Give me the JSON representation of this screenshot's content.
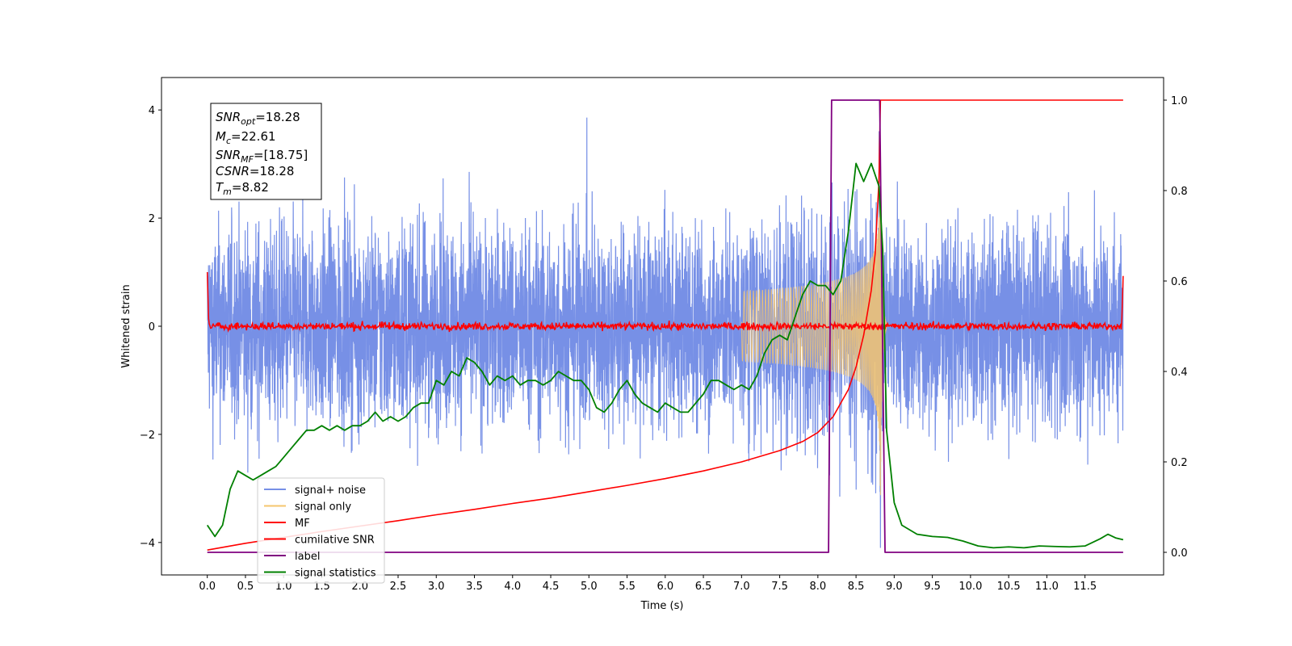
{
  "chart_data": {
    "type": "line",
    "xlabel": "Time (s)",
    "ylabel": "Whitened strain",
    "xlim": [
      -0.6,
      12.53
    ],
    "ylim_left": [
      -4.6,
      4.6
    ],
    "ylim_right": [
      -0.05,
      1.05
    ],
    "x_ticks": [
      "0.0",
      "0.5",
      "1.0",
      "1.5",
      "2.0",
      "2.5",
      "3.0",
      "3.5",
      "4.0",
      "4.5",
      "5.0",
      "5.5",
      "6.0",
      "6.5",
      "7.0",
      "7.5",
      "8.0",
      "8.5",
      "9.0",
      "9.5",
      "10.0",
      "10.5",
      "11.0",
      "11.5"
    ],
    "y_left_ticks": [
      "4",
      "2",
      "0",
      "−2",
      "−4"
    ],
    "y_right_ticks": [
      "1.0",
      "0.8",
      "0.6",
      "0.4",
      "0.2",
      "0.0"
    ],
    "grid": false,
    "legend_position": "lower-left",
    "info_box": {
      "snr_opt": {
        "base": "SNR",
        "sub": "opt",
        "value": "=18.28"
      },
      "mc": {
        "base": "M",
        "sub": "c",
        "value": "=22.61"
      },
      "snr_mf": {
        "base": "SNR",
        "sub": "MF",
        "value": "=[18.75]"
      },
      "csnr": {
        "base": "CSNR",
        "sub": "",
        "value": "=18.28"
      },
      "tm": {
        "base": "T",
        "sub": "m",
        "value": "=8.82"
      }
    },
    "series": [
      {
        "name": "signal+ noise",
        "axis": "left",
        "color": "#7790e6",
        "description_values": {
          "x_start": 0.0,
          "x_end": 12.0,
          "amplitude_envelope": 2.6,
          "spike_max": 3.9,
          "spike_min": -4.1
        }
      },
      {
        "name": "signal only",
        "axis": "left",
        "color": "#f5c66e",
        "chirp": {
          "t_start": 7.0,
          "t_merge": 8.82,
          "peak_amplitude": 3.5,
          "ringdown_end": 8.9
        }
      },
      {
        "name": "MF",
        "axis": "left",
        "color": "#ff0000",
        "noise": {
          "amplitude": 0.1,
          "edge_value": 1.0
        }
      },
      {
        "name": "cumilative SNR",
        "axis": "right",
        "color": "#ff0000",
        "x": [
          0.0,
          0.5,
          1.0,
          1.5,
          2.0,
          2.5,
          3.0,
          3.5,
          4.0,
          4.5,
          5.0,
          5.5,
          6.0,
          6.5,
          7.0,
          7.5,
          7.8,
          8.0,
          8.2,
          8.4,
          8.5,
          8.6,
          8.7,
          8.75,
          8.8,
          8.82,
          12.0
        ],
        "values": [
          0.005,
          0.02,
          0.033,
          0.046,
          0.058,
          0.07,
          0.083,
          0.095,
          0.108,
          0.12,
          0.134,
          0.148,
          0.163,
          0.18,
          0.2,
          0.225,
          0.245,
          0.265,
          0.3,
          0.36,
          0.41,
          0.48,
          0.58,
          0.66,
          0.82,
          1.0,
          1.0
        ]
      },
      {
        "name": "label",
        "axis": "right",
        "color": "#800080",
        "x": [
          0.0,
          8.14,
          8.18,
          8.81,
          8.88,
          12.0
        ],
        "values": [
          0.0,
          0.0,
          1.0,
          1.0,
          0.0,
          0.0
        ]
      },
      {
        "name": "signal statistics",
        "axis": "right",
        "color": "#008000",
        "x": [
          0.0,
          0.1,
          0.2,
          0.3,
          0.4,
          0.5,
          0.6,
          0.7,
          0.8,
          0.9,
          1.0,
          1.1,
          1.2,
          1.3,
          1.4,
          1.5,
          1.6,
          1.7,
          1.8,
          1.9,
          2.0,
          2.1,
          2.2,
          2.3,
          2.4,
          2.5,
          2.6,
          2.7,
          2.8,
          2.9,
          3.0,
          3.1,
          3.2,
          3.3,
          3.4,
          3.5,
          3.6,
          3.7,
          3.8,
          3.9,
          4.0,
          4.1,
          4.2,
          4.3,
          4.4,
          4.5,
          4.6,
          4.7,
          4.8,
          4.9,
          5.0,
          5.1,
          5.2,
          5.3,
          5.4,
          5.5,
          5.6,
          5.7,
          5.8,
          5.9,
          6.0,
          6.1,
          6.2,
          6.3,
          6.4,
          6.5,
          6.6,
          6.7,
          6.8,
          6.9,
          7.0,
          7.1,
          7.2,
          7.3,
          7.4,
          7.5,
          7.6,
          7.7,
          7.8,
          7.9,
          8.0,
          8.1,
          8.2,
          8.3,
          8.4,
          8.5,
          8.6,
          8.7,
          8.8,
          8.85,
          8.9,
          9.0,
          9.1,
          9.3,
          9.5,
          9.7,
          9.9,
          10.1,
          10.3,
          10.5,
          10.7,
          10.9,
          11.1,
          11.3,
          11.5,
          11.7,
          11.8,
          11.9,
          12.0
        ],
        "values": [
          0.06,
          0.035,
          0.06,
          0.14,
          0.18,
          0.17,
          0.16,
          0.17,
          0.18,
          0.19,
          0.21,
          0.23,
          0.25,
          0.27,
          0.27,
          0.28,
          0.27,
          0.28,
          0.27,
          0.28,
          0.28,
          0.29,
          0.31,
          0.29,
          0.3,
          0.29,
          0.3,
          0.32,
          0.33,
          0.33,
          0.38,
          0.37,
          0.4,
          0.39,
          0.43,
          0.42,
          0.4,
          0.37,
          0.39,
          0.38,
          0.39,
          0.37,
          0.38,
          0.38,
          0.37,
          0.38,
          0.4,
          0.39,
          0.38,
          0.38,
          0.36,
          0.32,
          0.31,
          0.33,
          0.36,
          0.38,
          0.35,
          0.33,
          0.32,
          0.31,
          0.33,
          0.32,
          0.31,
          0.31,
          0.33,
          0.35,
          0.38,
          0.38,
          0.37,
          0.36,
          0.37,
          0.36,
          0.39,
          0.44,
          0.47,
          0.48,
          0.47,
          0.52,
          0.57,
          0.6,
          0.59,
          0.59,
          0.57,
          0.6,
          0.71,
          0.86,
          0.82,
          0.86,
          0.81,
          0.67,
          0.27,
          0.11,
          0.06,
          0.04,
          0.035,
          0.033,
          0.025,
          0.014,
          0.01,
          0.012,
          0.01,
          0.014,
          0.013,
          0.012,
          0.014,
          0.03,
          0.04,
          0.032,
          0.028
        ]
      }
    ]
  },
  "legend": {
    "items": [
      {
        "label": "signal+ noise",
        "color": "#7790e6"
      },
      {
        "label": "signal only",
        "color": "#f5c66e"
      },
      {
        "label": "MF",
        "color": "#ff0000"
      },
      {
        "label": "cumilative SNR",
        "color": "#ff0000"
      },
      {
        "label": "label",
        "color": "#800080"
      },
      {
        "label": "signal statistics",
        "color": "#008000"
      }
    ]
  }
}
